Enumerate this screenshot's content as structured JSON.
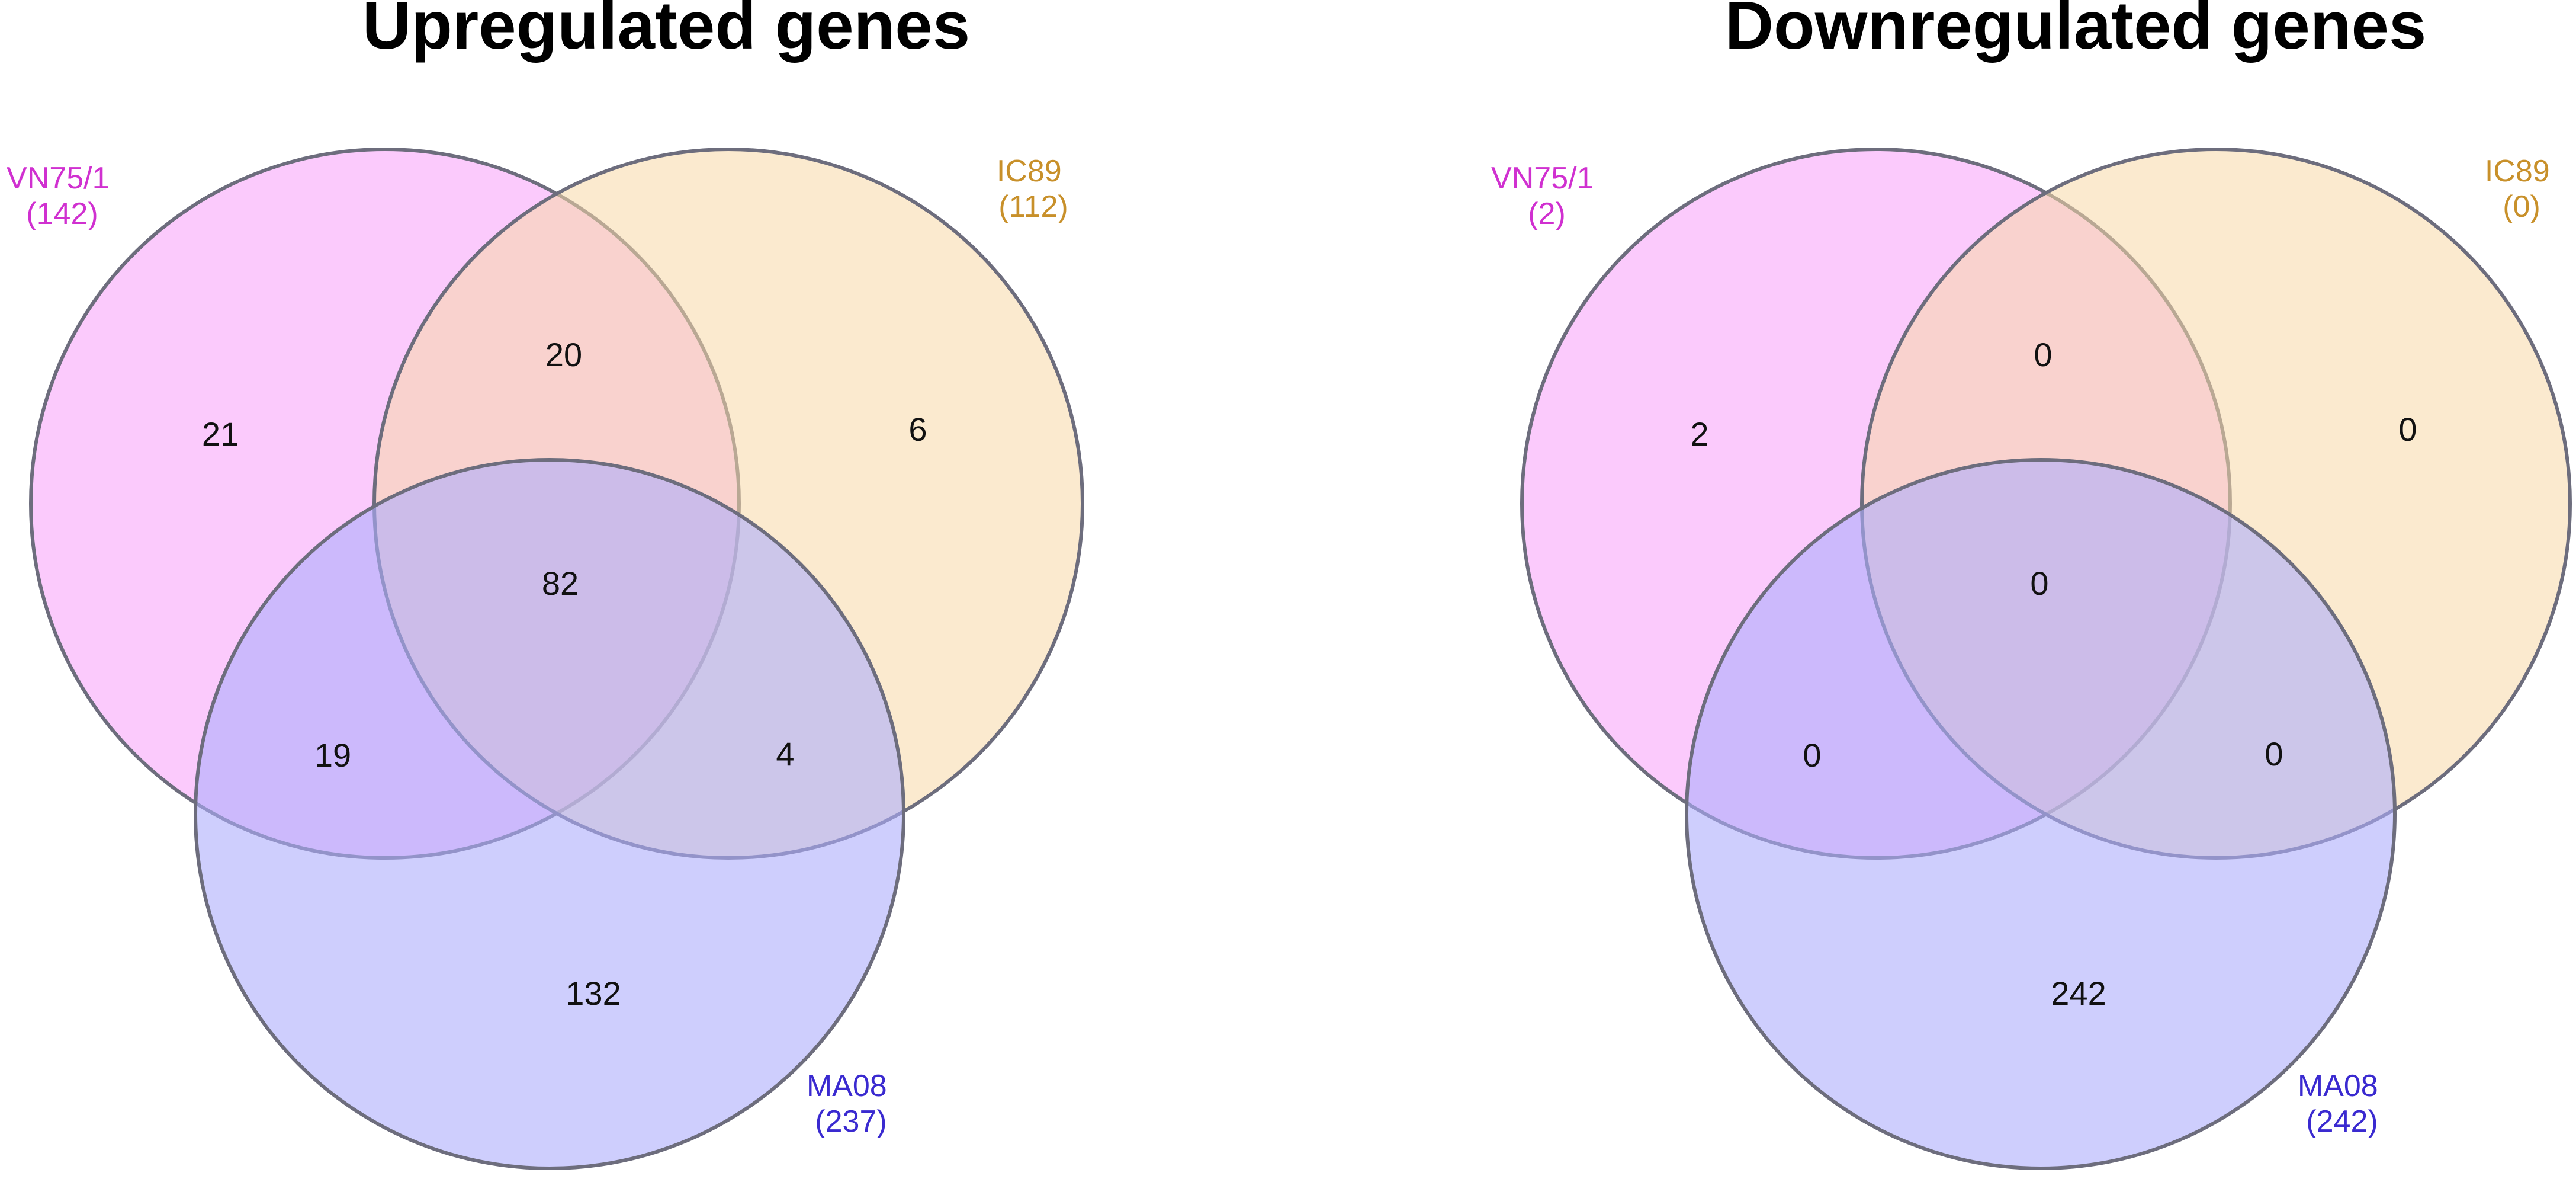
{
  "colors": {
    "vn75": "#f9aefb",
    "ic89": "#f8d8a8",
    "ma08": "#aeaefb",
    "outline": "#6d6d7d",
    "vn75_text": "#d030d0",
    "ic89_text": "#c8902a",
    "ma08_text": "#3a2ad0"
  },
  "diagrams": [
    {
      "title": "Upregulated genes",
      "sets": [
        {
          "name": "VN75/1",
          "count": "(142)",
          "color_key": "vn75"
        },
        {
          "name": "IC89",
          "count": "(112)",
          "color_key": "ic89"
        },
        {
          "name": "MA08",
          "count": "(237)",
          "color_key": "ma08"
        }
      ],
      "regions": {
        "vn75_only": "21",
        "ic89_only": "6",
        "ma08_only": "132",
        "vn75_ic89": "20",
        "vn75_ma08": "19",
        "ic89_ma08": "4",
        "all": "82"
      }
    },
    {
      "title": "Downregulated genes",
      "sets": [
        {
          "name": "VN75/1",
          "count": "(2)",
          "color_key": "vn75"
        },
        {
          "name": "IC89",
          "count": "(0)",
          "color_key": "ic89"
        },
        {
          "name": "MA08",
          "count": "(242)",
          "color_key": "ma08"
        }
      ],
      "regions": {
        "vn75_only": "2",
        "ic89_only": "0",
        "ma08_only": "242",
        "vn75_ic89": "0",
        "vn75_ma08": "0",
        "ic89_ma08": "0",
        "all": "0"
      }
    }
  ]
}
